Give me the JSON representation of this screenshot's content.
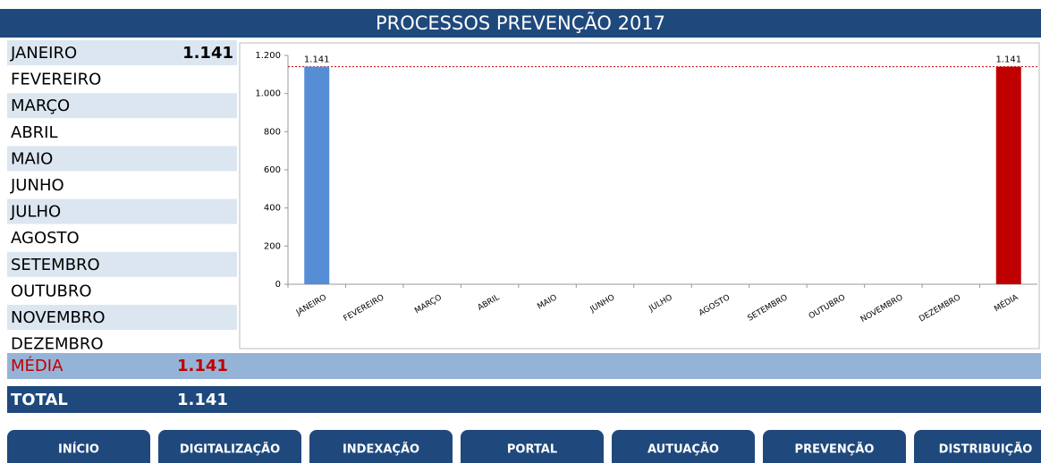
{
  "header": {
    "title": "PROCESSOS PREVENÇÃO 2017"
  },
  "table": {
    "rows": [
      [
        "JANEIRO",
        "1.141"
      ],
      [
        "FEVEREIRO"
      ],
      [
        "MARÇO"
      ],
      [
        "ABRIL"
      ],
      [
        "MAIO"
      ],
      [
        "JUNHO"
      ],
      [
        "JULHO"
      ],
      [
        "AGOSTO"
      ],
      [
        "SETEMBRO"
      ],
      [
        "OUTUBRO"
      ],
      [
        "NOVEMBRO"
      ],
      [
        "DEZEMBRO"
      ]
    ]
  },
  "summary": {
    "media": [
      "MÉDIA",
      "1.141"
    ],
    "total": [
      "TOTAL",
      "1.141"
    ]
  },
  "chart_data": {
    "type": "bar",
    "categories": [
      "JANEIRO",
      "FEVEREIRO",
      "MARÇO",
      "ABRIL",
      "MAIO",
      "JUNHO",
      "JULHO",
      "AGOSTO",
      "SETEMBRO",
      "OUTUBRO",
      "NOVEMBRO",
      "DEZEMBRO",
      "MÉDIA"
    ],
    "values": [
      1141,
      null,
      null,
      null,
      null,
      null,
      null,
      null,
      null,
      null,
      null,
      null,
      1141
    ],
    "value_labels": [
      "1.141",
      null,
      null,
      null,
      null,
      null,
      null,
      null,
      null,
      null,
      null,
      null,
      "1.141"
    ],
    "colors": [
      "#558ed5",
      "#558ed5",
      "#558ed5",
      "#558ed5",
      "#558ed5",
      "#558ed5",
      "#558ed5",
      "#558ed5",
      "#558ed5",
      "#558ed5",
      "#558ed5",
      "#558ed5",
      "#c00000"
    ],
    "reference_line": {
      "value": 1141,
      "color": "#c00000"
    },
    "ylim": [
      0,
      1200
    ],
    "yticks": [
      0,
      200,
      400,
      600,
      800,
      {
        "value": 1000,
        "label": "1.000"
      },
      {
        "value": 1200,
        "label": "1.200"
      }
    ],
    "grid": false
  },
  "buttons": [
    "INÍCIO",
    "DIGITALIZAÇÃO",
    "INDEXAÇÃO",
    "PORTAL",
    "AUTUAÇÃO",
    "PREVENÇÃO",
    "DISTRIBUIÇÃO"
  ]
}
